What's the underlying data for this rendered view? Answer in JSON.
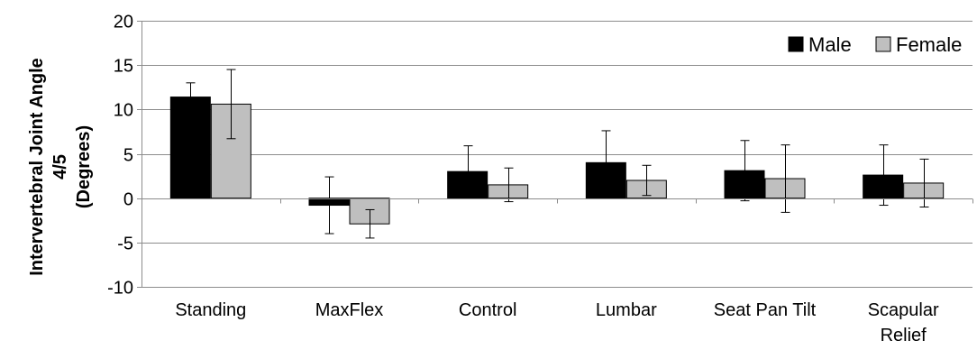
{
  "chart_data": {
    "type": "bar",
    "title": "",
    "xlabel": "",
    "ylabel_lines": [
      "Intervertebral Joint Angle",
      "4/5",
      "(Degrees)"
    ],
    "ylim": [
      -10,
      20
    ],
    "yticks": [
      -10,
      -5,
      0,
      5,
      10,
      15,
      20
    ],
    "grid": true,
    "legend_position": "top-right",
    "categories": [
      [
        "Standing"
      ],
      [
        "MaxFlex"
      ],
      [
        "Control"
      ],
      [
        "Lumbar"
      ],
      [
        "Seat Pan Tilt"
      ],
      [
        "Scapular",
        "Relief"
      ]
    ],
    "series": [
      {
        "name": "Male",
        "color": "#000000",
        "values": [
          11.4,
          -0.8,
          3.0,
          4.0,
          3.1,
          2.6
        ],
        "errors": [
          1.6,
          3.2,
          2.9,
          3.6,
          3.4,
          3.4
        ]
      },
      {
        "name": "Female",
        "color": "#bfbfbf",
        "values": [
          10.6,
          -2.9,
          1.5,
          2.0,
          2.2,
          1.7
        ],
        "errors": [
          3.9,
          1.6,
          1.9,
          1.7,
          3.8,
          2.7
        ]
      }
    ]
  }
}
